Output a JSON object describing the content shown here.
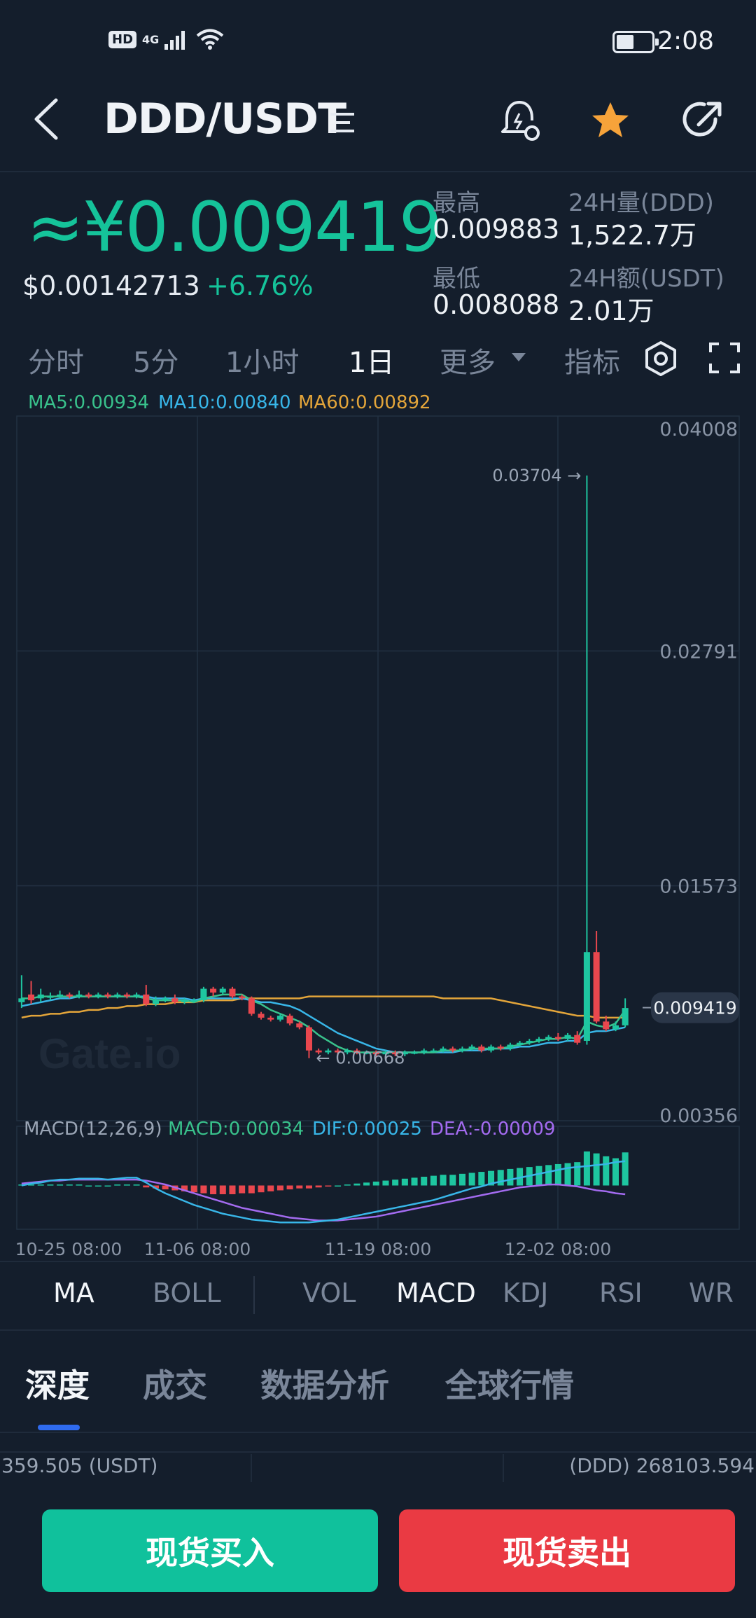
{
  "status_bar": {
    "hd": "HD",
    "network": "4G",
    "time": "2:08"
  },
  "header": {
    "pair": "DDD/USDT",
    "icons": [
      "back-icon",
      "pair-menu-icon",
      "alert-icon",
      "star-icon",
      "share-icon"
    ],
    "star_color": "#f6a33a"
  },
  "price": {
    "main": "≈¥0.009419",
    "usd": "$0.00142713",
    "change": "+6.76%",
    "high_label": "最高",
    "high": "0.009883",
    "low_label": "最低",
    "low": "0.008088",
    "vol_label": "24H量(DDD)",
    "vol": "1,522.7万",
    "amt_label": "24H额(USDT)",
    "amt": "2.01万"
  },
  "periods": {
    "items": [
      "分时",
      "5分",
      "1小时",
      "1日",
      "更多",
      "指标"
    ],
    "active": "1日"
  },
  "ma_legend": {
    "ma5": "MA5:0.00934",
    "ma10": "MA10:0.00840",
    "ma60": "MA60:0.00892",
    "ma5_color": "#39c28c",
    "ma10_color": "#38b6e8",
    "ma60_color": "#e3a53a"
  },
  "chart_data": {
    "type": "candlestick",
    "y_ticks": [
      "0.04008",
      "0.02791",
      "0.01573",
      "0.00356"
    ],
    "ylim": [
      0.00356,
      0.04008
    ],
    "x_ticks": [
      "10-25 08:00",
      "11-06 08:00",
      "11-19 08:00",
      "12-02 08:00"
    ],
    "current_price_label": "0.009419",
    "max_annotation": "0.03704",
    "min_annotation": "0.00668",
    "watermark": "Gate.io",
    "up_color": "#1ec6a0",
    "down_color": "#e9474e",
    "candles": [
      {
        "o": 0.0097,
        "c": 0.0099,
        "h": 0.0111,
        "l": 0.0094
      },
      {
        "o": 0.0101,
        "c": 0.0098,
        "h": 0.0108,
        "l": 0.0096
      },
      {
        "o": 0.0099,
        "c": 0.0101,
        "h": 0.0104,
        "l": 0.0097
      },
      {
        "o": 0.01,
        "c": 0.01,
        "h": 0.0102,
        "l": 0.0098
      },
      {
        "o": 0.01,
        "c": 0.0101,
        "h": 0.0103,
        "l": 0.0099
      },
      {
        "o": 0.0101,
        "c": 0.01,
        "h": 0.0102,
        "l": 0.0099
      },
      {
        "o": 0.01,
        "c": 0.0101,
        "h": 0.0103,
        "l": 0.0099
      },
      {
        "o": 0.0101,
        "c": 0.01,
        "h": 0.0102,
        "l": 0.0099
      },
      {
        "o": 0.01,
        "c": 0.0101,
        "h": 0.0102,
        "l": 0.0099
      },
      {
        "o": 0.0101,
        "c": 0.01,
        "h": 0.0102,
        "l": 0.0099
      },
      {
        "o": 0.01,
        "c": 0.0101,
        "h": 0.0102,
        "l": 0.0099
      },
      {
        "o": 0.0101,
        "c": 0.01,
        "h": 0.0102,
        "l": 0.0099
      },
      {
        "o": 0.01,
        "c": 0.0101,
        "h": 0.0102,
        "l": 0.0099
      },
      {
        "o": 0.0101,
        "c": 0.0096,
        "h": 0.0106,
        "l": 0.0095
      },
      {
        "o": 0.0096,
        "c": 0.0098,
        "h": 0.01,
        "l": 0.0095
      },
      {
        "o": 0.0098,
        "c": 0.0099,
        "h": 0.01,
        "l": 0.0097
      },
      {
        "o": 0.0099,
        "c": 0.0097,
        "h": 0.0101,
        "l": 0.0096
      },
      {
        "o": 0.0097,
        "c": 0.0098,
        "h": 0.0099,
        "l": 0.0096
      },
      {
        "o": 0.0098,
        "c": 0.0098,
        "h": 0.0099,
        "l": 0.0097
      },
      {
        "o": 0.0098,
        "c": 0.0104,
        "h": 0.0105,
        "l": 0.0097
      },
      {
        "o": 0.0104,
        "c": 0.0102,
        "h": 0.0105,
        "l": 0.01
      },
      {
        "o": 0.0102,
        "c": 0.0104,
        "h": 0.0105,
        "l": 0.0101
      },
      {
        "o": 0.0104,
        "c": 0.01,
        "h": 0.0105,
        "l": 0.0099
      },
      {
        "o": 0.01,
        "c": 0.0099,
        "h": 0.0101,
        "l": 0.0098
      },
      {
        "o": 0.0099,
        "c": 0.0091,
        "h": 0.01,
        "l": 0.009
      },
      {
        "o": 0.0091,
        "c": 0.0089,
        "h": 0.0092,
        "l": 0.0088
      },
      {
        "o": 0.0089,
        "c": 0.0088,
        "h": 0.009,
        "l": 0.0087
      },
      {
        "o": 0.0088,
        "c": 0.009,
        "h": 0.0091,
        "l": 0.0087
      },
      {
        "o": 0.009,
        "c": 0.0086,
        "h": 0.0091,
        "l": 0.0085
      },
      {
        "o": 0.0086,
        "c": 0.0084,
        "h": 0.0087,
        "l": 0.0083
      },
      {
        "o": 0.0084,
        "c": 0.0072,
        "h": 0.0085,
        "l": 0.0068
      },
      {
        "o": 0.0072,
        "c": 0.0071,
        "h": 0.0073,
        "l": 0.007
      },
      {
        "o": 0.0071,
        "c": 0.0072,
        "h": 0.0073,
        "l": 0.007
      },
      {
        "o": 0.0072,
        "c": 0.0071,
        "h": 0.0073,
        "l": 0.007
      },
      {
        "o": 0.0071,
        "c": 0.0072,
        "h": 0.0073,
        "l": 0.007
      },
      {
        "o": 0.0072,
        "c": 0.0071,
        "h": 0.0073,
        "l": 0.007
      },
      {
        "o": 0.0071,
        "c": 0.0071,
        "h": 0.0072,
        "l": 0.007
      },
      {
        "o": 0.0071,
        "c": 0.007,
        "h": 0.0072,
        "l": 0.0069
      },
      {
        "o": 0.007,
        "c": 0.0071,
        "h": 0.0072,
        "l": 0.0069
      },
      {
        "o": 0.0071,
        "c": 0.007,
        "h": 0.0072,
        "l": 0.0069
      },
      {
        "o": 0.007,
        "c": 0.0071,
        "h": 0.0072,
        "l": 0.0069
      },
      {
        "o": 0.0071,
        "c": 0.0071,
        "h": 0.0072,
        "l": 0.007
      },
      {
        "o": 0.0071,
        "c": 0.0072,
        "h": 0.0073,
        "l": 0.007
      },
      {
        "o": 0.0072,
        "c": 0.0072,
        "h": 0.0073,
        "l": 0.0071
      },
      {
        "o": 0.0072,
        "c": 0.0073,
        "h": 0.0074,
        "l": 0.0071
      },
      {
        "o": 0.0073,
        "c": 0.0072,
        "h": 0.0074,
        "l": 0.0071
      },
      {
        "o": 0.0072,
        "c": 0.0073,
        "h": 0.0074,
        "l": 0.0071
      },
      {
        "o": 0.0073,
        "c": 0.0074,
        "h": 0.0075,
        "l": 0.0072
      },
      {
        "o": 0.0074,
        "c": 0.0072,
        "h": 0.0075,
        "l": 0.0071
      },
      {
        "o": 0.0072,
        "c": 0.0074,
        "h": 0.0075,
        "l": 0.0071
      },
      {
        "o": 0.0074,
        "c": 0.0073,
        "h": 0.0075,
        "l": 0.0072
      },
      {
        "o": 0.0073,
        "c": 0.0075,
        "h": 0.0076,
        "l": 0.0072
      },
      {
        "o": 0.0075,
        "c": 0.0076,
        "h": 0.0077,
        "l": 0.0074
      },
      {
        "o": 0.0076,
        "c": 0.0077,
        "h": 0.0078,
        "l": 0.0075
      },
      {
        "o": 0.0077,
        "c": 0.0078,
        "h": 0.0079,
        "l": 0.0076
      },
      {
        "o": 0.0078,
        "c": 0.0079,
        "h": 0.008,
        "l": 0.0077
      },
      {
        "o": 0.0079,
        "c": 0.0078,
        "h": 0.0081,
        "l": 0.0077
      },
      {
        "o": 0.0078,
        "c": 0.008,
        "h": 0.0081,
        "l": 0.0077
      },
      {
        "o": 0.008,
        "c": 0.0076,
        "h": 0.0082,
        "l": 0.0075
      },
      {
        "o": 0.0077,
        "c": 0.0123,
        "h": 0.037,
        "l": 0.0075
      },
      {
        "o": 0.0123,
        "c": 0.0087,
        "h": 0.0134,
        "l": 0.0086
      },
      {
        "o": 0.0087,
        "c": 0.0083,
        "h": 0.009,
        "l": 0.0082
      },
      {
        "o": 0.0083,
        "c": 0.0085,
        "h": 0.0087,
        "l": 0.0082
      },
      {
        "o": 0.0085,
        "c": 0.0094,
        "h": 0.0099,
        "l": 0.0084
      }
    ],
    "ma5": [
      0.0099,
      0.0099,
      0.01,
      0.01,
      0.01,
      0.01,
      0.01,
      0.01,
      0.01,
      0.01,
      0.01,
      0.01,
      0.01,
      0.0099,
      0.0098,
      0.0098,
      0.0098,
      0.0098,
      0.0097,
      0.0099,
      0.01,
      0.0101,
      0.0101,
      0.0101,
      0.0098,
      0.0096,
      0.0093,
      0.0091,
      0.0089,
      0.0087,
      0.0084,
      0.008,
      0.0077,
      0.0074,
      0.0072,
      0.0071,
      0.0071,
      0.0071,
      0.0071,
      0.0071,
      0.0071,
      0.0071,
      0.0071,
      0.0071,
      0.0072,
      0.0072,
      0.0072,
      0.0073,
      0.0073,
      0.0073,
      0.0073,
      0.0074,
      0.0075,
      0.0076,
      0.0077,
      0.0078,
      0.0078,
      0.0079,
      0.0078,
      0.0087,
      0.0085,
      0.0084,
      0.0086,
      0.0093
    ],
    "ma10": [
      0.0095,
      0.0096,
      0.0097,
      0.0098,
      0.0099,
      0.0099,
      0.01,
      0.01,
      0.01,
      0.01,
      0.01,
      0.01,
      0.01,
      0.01,
      0.0099,
      0.0099,
      0.0099,
      0.0099,
      0.0098,
      0.0099,
      0.0099,
      0.0099,
      0.0099,
      0.0099,
      0.0098,
      0.0097,
      0.0097,
      0.0096,
      0.0095,
      0.0093,
      0.009,
      0.0087,
      0.0084,
      0.0081,
      0.0079,
      0.0077,
      0.0075,
      0.0073,
      0.0072,
      0.0071,
      0.0071,
      0.0071,
      0.0071,
      0.0071,
      0.0071,
      0.0071,
      0.0072,
      0.0072,
      0.0072,
      0.0073,
      0.0073,
      0.0073,
      0.0074,
      0.0074,
      0.0075,
      0.0076,
      0.0076,
      0.0077,
      0.0077,
      0.0081,
      0.0082,
      0.0082,
      0.0083,
      0.0084
    ],
    "ma60": [
      0.0089,
      0.009,
      0.009,
      0.0091,
      0.0091,
      0.0092,
      0.0092,
      0.0093,
      0.0093,
      0.0094,
      0.0094,
      0.0095,
      0.0095,
      0.0096,
      0.0096,
      0.0096,
      0.0097,
      0.0097,
      0.0097,
      0.0098,
      0.0098,
      0.0098,
      0.0098,
      0.0099,
      0.0099,
      0.0099,
      0.0099,
      0.0099,
      0.0099,
      0.0099,
      0.01,
      0.01,
      0.01,
      0.01,
      0.01,
      0.01,
      0.01,
      0.01,
      0.01,
      0.01,
      0.01,
      0.01,
      0.01,
      0.01,
      0.0099,
      0.0099,
      0.0099,
      0.0099,
      0.0099,
      0.0099,
      0.0098,
      0.0097,
      0.0096,
      0.0095,
      0.0094,
      0.0093,
      0.0092,
      0.0091,
      0.009,
      0.009,
      0.0089,
      0.0089,
      0.0089,
      0.0089
    ]
  },
  "macd": {
    "label": "MACD(12,26,9)",
    "macd": "MACD:0.00034",
    "dif": "DIF:0.00025",
    "dea": "DEA:-0.00009",
    "macd_color": "#39c28c",
    "dif_color": "#38b6e8",
    "dea_color": "#a36bf0",
    "ylim": [
      -0.00045,
      0.00045
    ],
    "hist": [
      1e-05,
      1e-05,
      1e-05,
      1e-05,
      1e-05,
      1e-05,
      1e-05,
      0.0,
      0.0,
      0.0,
      1e-05,
      1e-05,
      1e-05,
      -2e-05,
      -3e-05,
      -4e-05,
      -5e-05,
      -6e-05,
      -7e-05,
      -8e-05,
      -9e-05,
      -9e-05,
      -9e-05,
      -8e-05,
      -8e-05,
      -7e-05,
      -6e-05,
      -5e-05,
      -4e-05,
      -3e-05,
      -3e-05,
      -2e-05,
      -1e-05,
      0.0,
      1e-05,
      2e-05,
      3e-05,
      4e-05,
      5e-05,
      6e-05,
      7e-05,
      8e-05,
      9e-05,
      0.0001,
      0.00011,
      0.00011,
      0.00012,
      0.00013,
      0.00014,
      0.00015,
      0.00016,
      0.00017,
      0.00018,
      0.00019,
      0.0002,
      0.00021,
      0.00022,
      0.00023,
      0.00024,
      0.00035,
      0.00033,
      0.0003,
      0.00028,
      0.00034
    ],
    "dif_series": [
      0.0,
      2e-05,
      3e-05,
      5e-05,
      6e-05,
      6e-05,
      7e-05,
      7e-05,
      7e-05,
      6e-05,
      7e-05,
      8e-05,
      8e-05,
      3e-05,
      -3e-05,
      -8e-05,
      -0.00012,
      -0.00016,
      -0.0002,
      -0.00023,
      -0.00026,
      -0.00029,
      -0.00031,
      -0.00033,
      -0.00035,
      -0.00036,
      -0.00037,
      -0.00038,
      -0.00038,
      -0.00038,
      -0.00038,
      -0.00037,
      -0.00036,
      -0.00035,
      -0.00033,
      -0.00031,
      -0.00029,
      -0.00027,
      -0.00025,
      -0.00023,
      -0.00021,
      -0.00019,
      -0.00017,
      -0.00015,
      -0.00012,
      -9e-05,
      -6e-05,
      -3e-05,
      -1e-05,
      2e-05,
      4e-05,
      6e-05,
      8e-05,
      0.0001,
      0.00012,
      0.00014,
      0.00016,
      0.00018,
      0.00019,
      0.0002,
      0.00021,
      0.00022,
      0.00024,
      0.00025
    ],
    "dea_series": [
      2e-05,
      3e-05,
      4e-05,
      5e-05,
      5e-05,
      6e-05,
      6e-05,
      6e-05,
      6e-05,
      6e-05,
      6e-05,
      6e-05,
      6e-05,
      5e-05,
      3e-05,
      1e-05,
      -2e-05,
      -5e-05,
      -8e-05,
      -0.00011,
      -0.00014,
      -0.00017,
      -0.0002,
      -0.00023,
      -0.00025,
      -0.00027,
      -0.00029,
      -0.00031,
      -0.00033,
      -0.00034,
      -0.00035,
      -0.00036,
      -0.00036,
      -0.00036,
      -0.00035,
      -0.00034,
      -0.00033,
      -0.00032,
      -0.0003,
      -0.00028,
      -0.00026,
      -0.00024,
      -0.00022,
      -0.0002,
      -0.00018,
      -0.00016,
      -0.00014,
      -0.00012,
      -0.0001,
      -8e-05,
      -6e-05,
      -4e-05,
      -2e-05,
      -1e-05,
      0.0,
      1e-05,
      1e-05,
      0.0,
      -1e-05,
      -3e-05,
      -5e-05,
      -6e-05,
      -8e-05,
      -9e-05
    ]
  },
  "indicator_tabs": {
    "items": [
      "MA",
      "BOLL",
      "VOL",
      "MACD",
      "KDJ",
      "RSI",
      "WR"
    ],
    "active": [
      "MA",
      "MACD"
    ]
  },
  "bottom_tabs": {
    "items": [
      "深度",
      "成交",
      "数据分析",
      "全球行情"
    ],
    "active": "深度"
  },
  "depth": {
    "left": "359.505 (USDT)",
    "right": "(DDD) 268103.594"
  },
  "actions": {
    "buy": "现货买入",
    "sell": "现货卖出",
    "buy_color": "#10c19c",
    "sell_color": "#ea3a43"
  }
}
